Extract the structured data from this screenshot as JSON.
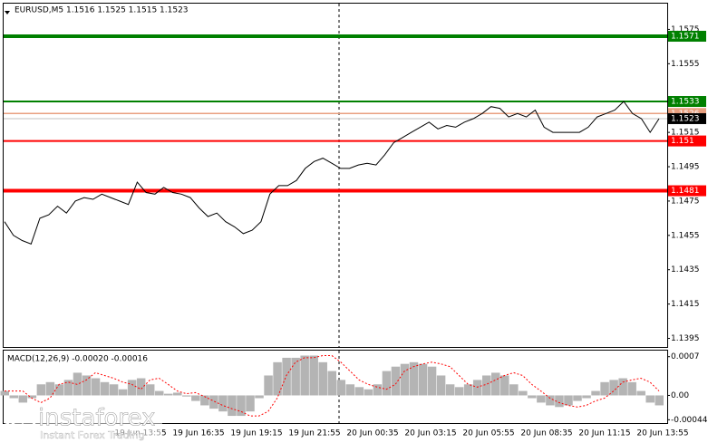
{
  "chart_data": [
    {
      "type": "line",
      "title": "EURUSD,M5  1.1516 1.1525 1.1515 1.1523",
      "series": [
        {
          "color": "#000000",
          "values": [
            1.1463,
            1.1455,
            1.1452,
            1.145,
            1.1465,
            1.1467,
            1.1472,
            1.1468,
            1.1475,
            1.1477,
            1.1476,
            1.1479,
            1.1477,
            1.1475,
            1.1473,
            1.1486,
            1.148,
            1.1479,
            1.1483,
            1.148,
            1.1479,
            1.1477,
            1.1471,
            1.1466,
            1.1468,
            1.1463,
            1.146,
            1.1456,
            1.1458,
            1.1463,
            1.1479,
            1.1484,
            1.1484,
            1.1487,
            1.1494,
            1.1498,
            1.15,
            1.1497,
            1.1494,
            1.1494,
            1.1496,
            1.1497,
            1.1496,
            1.1502,
            1.1509,
            1.1512,
            1.1515,
            1.1518,
            1.1521,
            1.1517,
            1.1519,
            1.1518,
            1.1521,
            1.1523,
            1.1526,
            1.153,
            1.1529,
            1.1524,
            1.1526,
            1.1524,
            1.1528,
            1.1518,
            1.1515,
            1.1515,
            1.1515,
            1.1515,
            1.1518,
            1.1524,
            1.1526,
            1.1528,
            1.1533,
            1.1526,
            1.1523,
            1.1515,
            1.1523
          ]
        }
      ],
      "levels": [
        {
          "value": 1.1571,
          "color": "#008000"
        },
        {
          "value": 1.1526,
          "color": "#e8a080"
        },
        {
          "value": 1.1533,
          "color": "#008000"
        },
        {
          "value": 1.151,
          "color": "#ff0000"
        },
        {
          "value": 1.1481,
          "color": "#ff0000"
        },
        {
          "value": 1.1523,
          "color": "#000000"
        }
      ],
      "ylim": [
        1.139,
        1.159
      ],
      "yticks": [
        1.1575,
        1.1555,
        1.1515,
        1.1495,
        1.1475,
        1.1455,
        1.1435,
        1.1415,
        1.1395
      ],
      "xticks": [
        "19 Jun 13:55",
        "19 Jun 16:35",
        "19 Jun 19:15",
        "19 Jun 21:55",
        "20 Jun 00:35",
        "20 Jun 03:15",
        "20 Jun 05:55",
        "20 Jun 08:35",
        "20 Jun 11:15",
        "20 Jun 13:55"
      ]
    },
    {
      "type": "macd",
      "title": "MACD(12,26,9) -0.00020 -0.00016",
      "series": [
        {
          "color": "#b4b4b4",
          "values": [
            8e-05,
            -5e-05,
            -0.00013,
            -5e-05,
            0.0002,
            0.00024,
            0.0002,
            0.00028,
            0.00041,
            0.00036,
            0.00031,
            0.00024,
            0.0002,
            0.00011,
            0.00028,
            0.00031,
            0.0002,
            8e-05,
            3e-05,
            5e-05,
            -2e-05,
            -0.0001,
            -0.00018,
            -0.00024,
            -0.00029,
            -0.00037,
            -0.00037,
            -0.00029,
            -5e-05,
            0.00036,
            0.0006,
            0.00068,
            0.00068,
            0.00072,
            0.00072,
            0.0006,
            0.00044,
            0.00028,
            0.0002,
            0.00015,
            0.00011,
            0.0002,
            0.00044,
            0.00052,
            0.00057,
            0.0006,
            0.00057,
            0.00052,
            0.00036,
            0.0002,
            0.00015,
            0.0002,
            0.00028,
            0.00036,
            0.00041,
            0.00036,
            0.0002,
            8e-05,
            -5e-05,
            -0.00013,
            -0.00018,
            -0.00021,
            -0.00018,
            -0.0001,
            -5e-05,
            8e-05,
            0.00024,
            0.00028,
            0.00031,
            0.00024,
            8e-05,
            -0.00013,
            -0.00018
          ]
        },
        {
          "color": "#ff0000",
          "values": [
            8e-05,
            8e-05,
            8e-05,
            -5e-05,
            -0.00013,
            -5e-05,
            0.0002,
            0.00024,
            0.0002,
            0.00028,
            0.00041,
            0.00036,
            0.00031,
            0.00024,
            0.0002,
            0.00011,
            0.00028,
            0.00031,
            0.0002,
            8e-05,
            3e-05,
            5e-05,
            -2e-05,
            -0.0001,
            -0.00018,
            -0.00024,
            -0.00029,
            -0.00037,
            -0.00037,
            -0.00029,
            -5e-05,
            0.00036,
            0.0006,
            0.00068,
            0.00068,
            0.00072,
            0.00072,
            0.0006,
            0.00044,
            0.00028,
            0.0002,
            0.00015,
            0.00011,
            0.0002,
            0.00044,
            0.00052,
            0.00057,
            0.0006,
            0.00057,
            0.00052,
            0.00036,
            0.0002,
            0.00015,
            0.0002,
            0.00028,
            0.00036,
            0.00041,
            0.00036,
            0.0002,
            8e-05,
            -5e-05,
            -0.00013,
            -0.00018,
            -0.00021,
            -0.00018,
            -0.0001,
            -5e-05,
            8e-05,
            0.00024,
            0.00028,
            0.00031,
            0.00024,
            8e-05
          ]
        }
      ],
      "ylim": [
        -0.0005,
        0.00081
      ],
      "yticks": [
        0.0007,
        {
          "value": 0,
          "label": "0.00"
        },
        -0.00044
      ]
    }
  ],
  "watermark": {
    "brand": "instaforex",
    "tagline": "Instant Forex Trading"
  }
}
